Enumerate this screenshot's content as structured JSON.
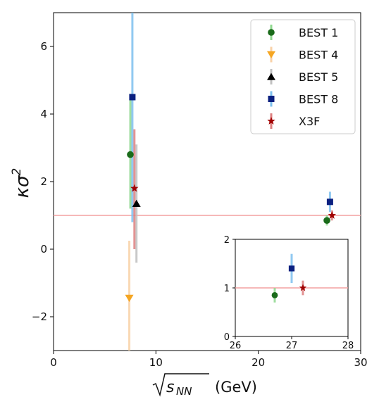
{
  "chart_data": {
    "type": "scatter",
    "xlabel": "√s_NN (GeV)",
    "xlabel_parts": {
      "radicand": "s",
      "subscript": "NN",
      "unit": "(GeV)"
    },
    "ylabel": "κσ²",
    "ylabel_parts": {
      "base": "κσ",
      "superscript": "2"
    },
    "xlim": [
      0,
      30
    ],
    "ylim": [
      -3,
      7
    ],
    "xticks": [
      0,
      10,
      20,
      30
    ],
    "yticks": [
      -2,
      0,
      2,
      4,
      6
    ],
    "xtick_labels": [
      "0",
      "10",
      "20",
      "30"
    ],
    "ytick_labels": [
      "−2",
      "0",
      "2",
      "4",
      "6"
    ],
    "reference_line": {
      "y": 1,
      "color": "#f4a0a0"
    },
    "legend_position": "top-right",
    "series": [
      {
        "name": "BEST 1",
        "marker": "circle",
        "color": "#1a6b1a",
        "err_color": "#8fd88f",
        "points": [
          {
            "x": 7.5,
            "y": 2.8,
            "lo": 1.2,
            "hi": 4.6
          },
          {
            "x": 26.7,
            "y": 0.85,
            "lo": 0.7,
            "hi": 1.0
          }
        ]
      },
      {
        "name": "BEST 4",
        "marker": "triangle-down",
        "color": "#f5a623",
        "err_color": "#f8d2a8",
        "points": [
          {
            "x": 7.4,
            "y": -1.45,
            "lo": -3.0,
            "hi": 0.25
          }
        ]
      },
      {
        "name": "BEST 5",
        "marker": "triangle-up",
        "color": "#000000",
        "err_color": "#c0c0c0",
        "points": [
          {
            "x": 8.1,
            "y": 1.35,
            "lo": -0.4,
            "hi": 3.1
          }
        ]
      },
      {
        "name": "BEST 8",
        "marker": "square",
        "color": "#0b2080",
        "err_color": "#7ec0ee",
        "points": [
          {
            "x": 7.7,
            "y": 4.5,
            "lo": 0.8,
            "hi": 8.0
          },
          {
            "x": 27.0,
            "y": 1.4,
            "lo": 1.1,
            "hi": 1.7
          }
        ]
      },
      {
        "name": "X3F",
        "marker": "star",
        "color": "#a00000",
        "err_color": "#dd8080",
        "points": [
          {
            "x": 7.9,
            "y": 1.8,
            "lo": 0.0,
            "hi": 3.55
          },
          {
            "x": 27.2,
            "y": 1.0,
            "lo": 0.85,
            "hi": 1.15
          }
        ]
      }
    ],
    "inset": {
      "xlim": [
        26,
        28
      ],
      "ylim": [
        0,
        2
      ],
      "xticks": [
        26,
        27,
        28
      ],
      "yticks": [
        0,
        1,
        2
      ],
      "xtick_labels": [
        "26",
        "27",
        "28"
      ],
      "ytick_labels": [
        "0",
        "1",
        "2"
      ]
    }
  }
}
